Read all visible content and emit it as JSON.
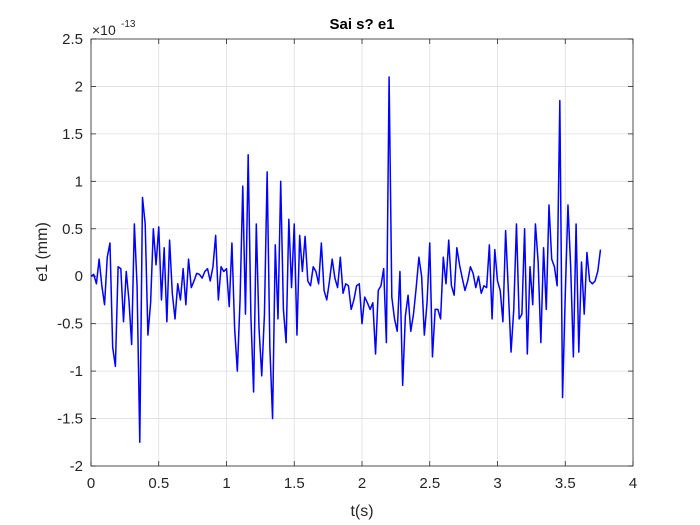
{
  "chart_data": {
    "type": "line",
    "title": "Sai s? e1",
    "xlabel": "t(s)",
    "ylabel": "e1 (mm)",
    "y_exponent_base": "×10",
    "y_exponent_power": "-13",
    "xlim": [
      0,
      4
    ],
    "ylim": [
      -2,
      2.5
    ],
    "xticks": [
      0,
      0.5,
      1,
      1.5,
      2,
      2.5,
      3,
      3.5,
      4
    ],
    "xtick_labels": [
      "0",
      "0.5",
      "1",
      "1.5",
      "2",
      "2.5",
      "3",
      "3.5",
      "4"
    ],
    "yticks": [
      -2,
      -1.5,
      -1,
      -0.5,
      0,
      0.5,
      1,
      1.5,
      2,
      2.5
    ],
    "ytick_labels": [
      "-2",
      "-1.5",
      "-1",
      "-0.5",
      "0",
      "0.5",
      "1",
      "1.5",
      "2",
      "2.5"
    ],
    "grid": true,
    "line_color": "#0000ff",
    "series": [
      {
        "x": [
          0,
          0.02,
          0.04,
          0.06,
          0.08,
          0.1,
          0.12,
          0.14,
          0.16,
          0.18,
          0.2,
          0.22,
          0.24,
          0.26,
          0.28,
          0.3,
          0.32,
          0.34,
          0.36,
          0.38,
          0.4,
          0.42,
          0.44,
          0.46,
          0.48,
          0.5,
          0.52,
          0.54,
          0.56,
          0.58,
          0.6,
          0.62,
          0.64,
          0.66,
          0.68,
          0.7,
          0.72,
          0.74,
          0.76,
          0.78,
          0.8,
          0.82,
          0.84,
          0.86,
          0.88,
          0.9,
          0.92,
          0.94,
          0.96,
          0.98,
          1.0,
          1.02,
          1.04,
          1.06,
          1.08,
          1.1,
          1.12,
          1.14,
          1.16,
          1.18,
          1.2,
          1.22,
          1.24,
          1.26,
          1.28,
          1.3,
          1.32,
          1.34,
          1.36,
          1.38,
          1.4,
          1.42,
          1.44,
          1.46,
          1.48,
          1.5,
          1.52,
          1.54,
          1.56,
          1.58,
          1.6,
          1.62,
          1.64,
          1.66,
          1.68,
          1.7,
          1.72,
          1.74,
          1.76,
          1.78,
          1.8,
          1.82,
          1.84,
          1.86,
          1.88,
          1.9,
          1.92,
          1.94,
          1.96,
          1.98,
          2.0,
          2.02,
          2.04,
          2.06,
          2.08,
          2.1,
          2.12,
          2.14,
          2.16,
          2.18,
          2.2,
          2.22,
          2.24,
          2.26,
          2.28,
          2.3,
          2.32,
          2.34,
          2.36,
          2.38,
          2.4,
          2.42,
          2.44,
          2.46,
          2.48,
          2.5,
          2.52,
          2.54,
          2.56,
          2.58,
          2.6,
          2.62,
          2.64,
          2.66,
          2.68,
          2.7,
          2.72,
          2.74,
          2.76,
          2.78,
          2.8,
          2.82,
          2.84,
          2.86,
          2.88,
          2.9,
          2.92,
          2.94,
          2.96,
          2.98,
          3.0,
          3.02,
          3.04,
          3.06,
          3.08,
          3.1,
          3.12,
          3.14,
          3.16,
          3.18,
          3.2,
          3.22,
          3.24,
          3.26,
          3.28,
          3.3,
          3.32,
          3.34,
          3.36,
          3.38,
          3.4,
          3.42,
          3.44,
          3.46,
          3.48,
          3.5,
          3.52,
          3.54,
          3.56,
          3.58,
          3.6,
          3.62,
          3.64,
          3.66,
          3.68,
          3.7,
          3.72,
          3.74,
          3.76
        ],
        "y": [
          0,
          0.02,
          -0.08,
          0.18,
          -0.1,
          -0.3,
          0.2,
          0.35,
          -0.75,
          -0.95,
          0.1,
          0.08,
          -0.48,
          0.05,
          -0.25,
          -0.72,
          0.55,
          -0.1,
          -1.75,
          0.83,
          0.55,
          -0.62,
          -0.28,
          0.5,
          0.12,
          0.52,
          -0.25,
          0.3,
          -0.48,
          0.38,
          -0.18,
          -0.45,
          -0.08,
          -0.25,
          0.08,
          -0.3,
          0.18,
          -0.12,
          -0.05,
          0.03,
          0.02,
          -0.02,
          0.05,
          0.08,
          -0.05,
          0.1,
          0.43,
          -0.25,
          0.1,
          0.05,
          0.08,
          -0.32,
          0.35,
          -0.55,
          -1.0,
          -0.25,
          0.95,
          -0.4,
          1.28,
          -0.42,
          -1.22,
          0.55,
          -0.55,
          -1.05,
          -0.4,
          1.1,
          -0.75,
          -1.5,
          0.33,
          -0.45,
          1.0,
          -0.35,
          -0.7,
          0.6,
          -0.12,
          0.55,
          -0.62,
          0.43,
          0.05,
          0.42,
          -0.05,
          -0.1,
          0.1,
          0.05,
          -0.08,
          0.35,
          -0.15,
          -0.25,
          -0.05,
          0.18,
          -0.02,
          -0.12,
          0.2,
          -0.18,
          -0.08,
          -0.1,
          -0.35,
          -0.25,
          -0.1,
          -0.08,
          -0.5,
          -0.22,
          -0.28,
          -0.35,
          -0.28,
          -0.82,
          -0.15,
          -0.1,
          0.08,
          -0.7,
          2.1,
          -0.22,
          -0.45,
          -0.58,
          0.05,
          -1.15,
          -0.42,
          -0.2,
          -0.58,
          -0.4,
          -0.12,
          0.2,
          0.0,
          -0.62,
          -0.28,
          0.35,
          -0.85,
          -0.35,
          -0.35,
          -0.45,
          0.2,
          -0.08,
          0.38,
          -0.1,
          -0.2,
          0.3,
          0.12,
          -0.02,
          -0.15,
          -0.05,
          0.1,
          0.03,
          -0.12,
          0.0,
          -0.18,
          -0.1,
          -0.12,
          0.33,
          -0.45,
          0.28,
          -0.05,
          -0.15,
          -0.48,
          0.48,
          -0.15,
          -0.8,
          -0.35,
          0.55,
          -0.45,
          -0.4,
          0.5,
          -0.82,
          0.1,
          -0.3,
          0.55,
          0.15,
          -0.7,
          0.3,
          -0.35,
          0.75,
          0.18,
          0.1,
          -0.1,
          1.85,
          -1.28,
          -0.2,
          0.75,
          0.1,
          -0.85,
          0.55,
          -0.8,
          0.15,
          -0.4,
          0.25,
          -0.05,
          -0.08,
          -0.05,
          0.05,
          0.28
        ]
      }
    ]
  }
}
